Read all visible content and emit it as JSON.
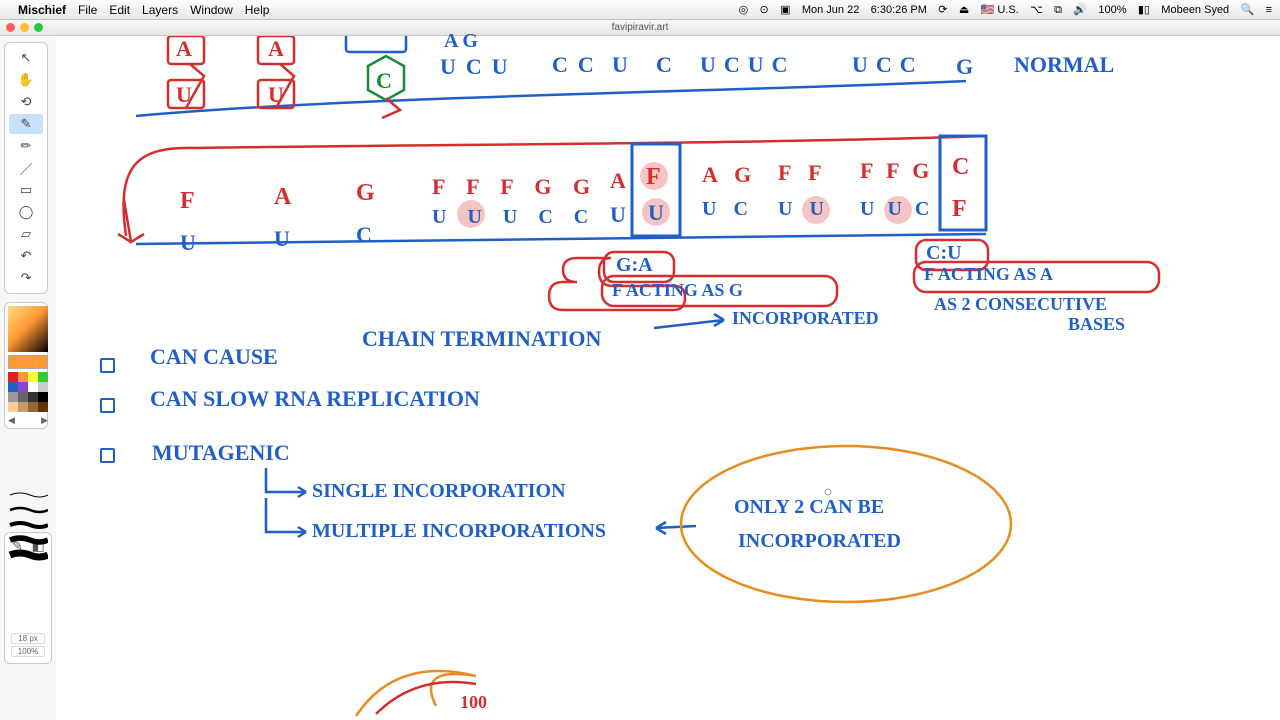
{
  "menubar": {
    "apple": "",
    "app": "Mischief",
    "items": [
      "File",
      "Edit",
      "Layers",
      "Window",
      "Help"
    ],
    "right": {
      "flag": "🇺🇸 U.S.",
      "date": "Mon Jun 22",
      "time": "6:30:26 PM",
      "battery": "100%",
      "user": "Mobeen Syed"
    }
  },
  "window": {
    "title": "favipiravir.art"
  },
  "palette_colors": [
    "#e02020",
    "#ff9933",
    "#ffff33",
    "#33cc33",
    "#1f5fc8",
    "#8844cc",
    "#ffffff",
    "#cccccc",
    "#999999",
    "#666666",
    "#333333",
    "#000000",
    "#ffcc99",
    "#cc9966",
    "#996633",
    "#663300"
  ],
  "brush": {
    "size": "18 px",
    "zoom": "100%"
  },
  "colors": {
    "blue": "#1f5fc8",
    "red": "#d42e2e",
    "orange": "#e88b20",
    "green": "#1a8a3a",
    "pink_hl": "#f7c4c4"
  },
  "normal_row": {
    "top": [
      "A",
      "A",
      "",
      "",
      "A G",
      "",
      "",
      "",
      "",
      "",
      "",
      "",
      "",
      ""
    ],
    "seq": [
      "U",
      "C",
      "U",
      "C C",
      "U",
      "C",
      "U C U C",
      "U C C",
      "G"
    ],
    "label": "NORMAL"
  },
  "f_row": {
    "top": [
      "F",
      "A",
      "G",
      "F F F G G",
      "A",
      "F",
      "A G",
      "F F",
      "F F G",
      "C"
    ],
    "bot": [
      "U",
      "U",
      "C",
      "U U U C C",
      "U",
      "U",
      "U C",
      "U U",
      "U U C",
      "F"
    ]
  },
  "annot": {
    "ga": "G:A",
    "ga2": "F ACTING AS G",
    "cu": "C:U",
    "cu2": "F ACTING AS A",
    "inc": "INCORPORATED",
    "as2": "AS  2  CONSECUTIVE",
    "bases": "BASES"
  },
  "bullets": {
    "b1a": "CAN  CAUSE",
    "b1b": "CHAIN TERMINATION",
    "b2": "CAN   SLOW    RNA   REPLICATION",
    "b3": "MUTAGENIC",
    "s1": "SINGLE  INCORPORATION",
    "s2": "MULTIPLE  INCORPORATIONS",
    "oval1": "ONLY  2  CAN  BE",
    "oval2": "INCORPORATED"
  }
}
